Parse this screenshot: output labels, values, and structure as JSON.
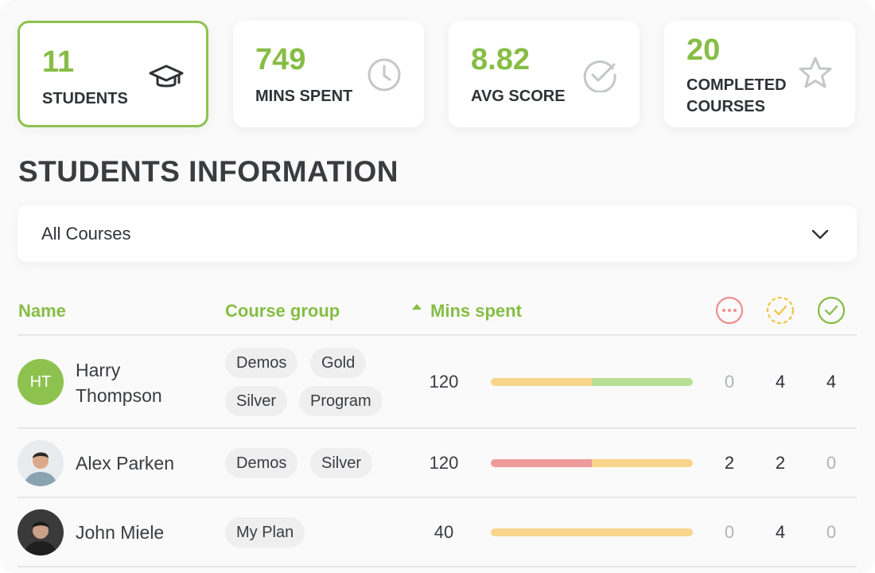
{
  "stats": [
    {
      "value": "11",
      "label": "STUDENTS",
      "icon": "graduation-cap-icon",
      "active": true
    },
    {
      "value": "749",
      "label": "MINS SPENT",
      "icon": "clock-icon",
      "active": false
    },
    {
      "value": "8.82",
      "label": "AVG SCORE",
      "icon": "check-circle-icon",
      "active": false
    },
    {
      "value": "20",
      "label_line1": "COMPLETED",
      "label_line2": "COURSES",
      "icon": "star-icon",
      "active": false
    }
  ],
  "section_title": "STUDENTS INFORMATION",
  "filter": {
    "selected": "All Courses"
  },
  "table": {
    "headers": {
      "name": "Name",
      "course_group": "Course group",
      "mins_spent": "Mins spent"
    },
    "status_icons": [
      "not-started-icon",
      "in-progress-icon",
      "completed-icon"
    ],
    "rows": [
      {
        "initials": "HT",
        "name_line1": "Harry",
        "name_line2": "Thompson",
        "groups": [
          "Demos",
          "Gold",
          "Silver",
          "Program"
        ],
        "mins": "120",
        "progress": {
          "in_progress_pct": 50,
          "completed_pct": 50,
          "not_started_pct": 0
        },
        "counts": [
          "0",
          "4",
          "4"
        ]
      },
      {
        "avatar": "photo",
        "name": "Alex Parken",
        "groups": [
          "Demos",
          "Silver"
        ],
        "mins": "120",
        "progress": {
          "not_started_pct": 50,
          "in_progress_pct": 50,
          "completed_pct": 0
        },
        "counts": [
          "2",
          "2",
          "0"
        ]
      },
      {
        "avatar": "photo",
        "name": "John Miele",
        "groups": [
          "My Plan"
        ],
        "mins": "40",
        "progress": {
          "in_progress_pct": 100,
          "not_started_pct": 0,
          "completed_pct": 0
        },
        "counts": [
          "0",
          "4",
          "0"
        ]
      }
    ]
  },
  "colors": {
    "accent": "#86bd45",
    "not_started": "#ee9a9a",
    "in_progress": "#f8d58b",
    "completed": "#b7df93"
  }
}
